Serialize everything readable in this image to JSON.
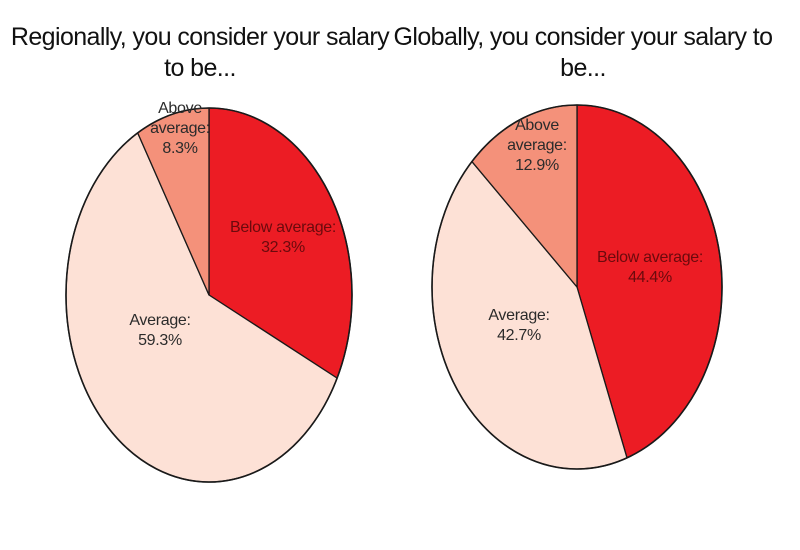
{
  "chart_data": [
    {
      "type": "pie",
      "title": "Regionally, you consider your salary to be...",
      "categories": [
        "Below average",
        "Average",
        "Above average"
      ],
      "values": [
        32.3,
        59.3,
        8.3
      ],
      "labels": [
        [
          "Below average:",
          "32.3%"
        ],
        [
          "Average:",
          "59.3%"
        ],
        [
          "Above",
          "average:",
          "8.3%"
        ]
      ],
      "colors": [
        "#ec1c24",
        "#fde1d6",
        "#f4917a"
      ],
      "label_colors": [
        "#6b0a0d",
        "#2b2b2b",
        "#2b2b2b"
      ]
    },
    {
      "type": "pie",
      "title": "Globally, you consider your salary to be...",
      "categories": [
        "Below average",
        "Average",
        "Above average"
      ],
      "values": [
        44.4,
        42.7,
        12.9
      ],
      "labels": [
        [
          "Below average:",
          "44.4%"
        ],
        [
          "Average:",
          "42.7%"
        ],
        [
          "Above",
          "average:",
          "12.9%"
        ]
      ],
      "colors": [
        "#ec1c24",
        "#fde1d6",
        "#f4917a"
      ],
      "label_colors": [
        "#6b0a0d",
        "#2b2b2b",
        "#2b2b2b"
      ]
    }
  ]
}
